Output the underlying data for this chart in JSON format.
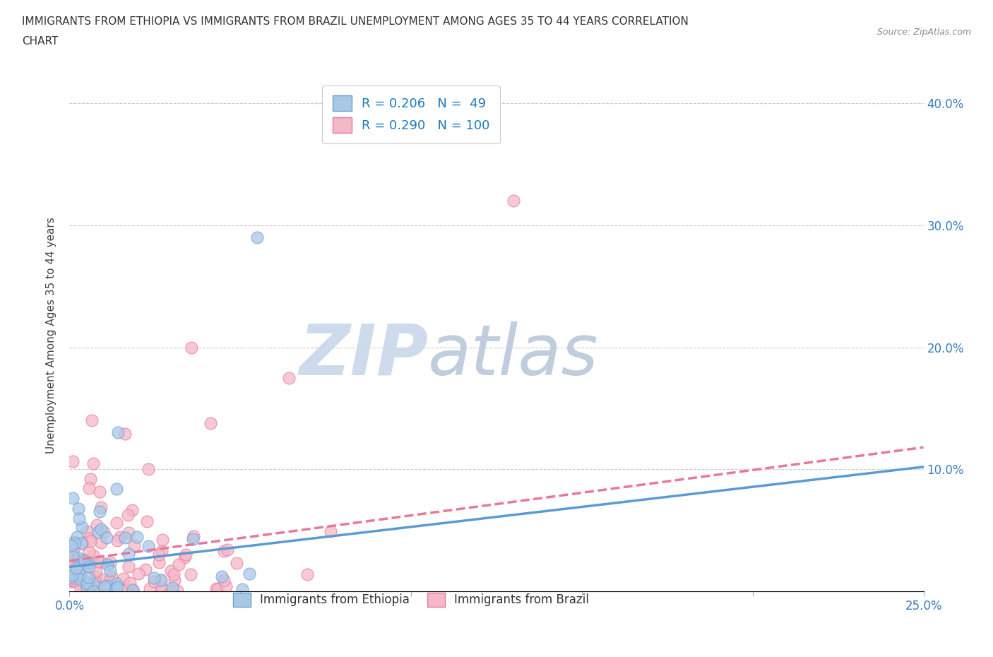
{
  "title_line1": "IMMIGRANTS FROM ETHIOPIA VS IMMIGRANTS FROM BRAZIL UNEMPLOYMENT AMONG AGES 35 TO 44 YEARS CORRELATION",
  "title_line2": "CHART",
  "source": "Source: ZipAtlas.com",
  "ylabel": "Unemployment Among Ages 35 to 44 years",
  "xlim": [
    0.0,
    0.25
  ],
  "ylim": [
    0.0,
    0.42
  ],
  "x_ticks": [
    0.0,
    0.05,
    0.1,
    0.15,
    0.2,
    0.25
  ],
  "x_tick_labels": [
    "0.0%",
    "",
    "",
    "",
    "",
    "25.0%"
  ],
  "y_ticks": [
    0.0,
    0.1,
    0.2,
    0.3,
    0.4
  ],
  "y_tick_labels": [
    "",
    "10.0%",
    "20.0%",
    "30.0%",
    "40.0%"
  ],
  "ethiopia_color": "#a8c8e8",
  "ethiopia_edge": "#6aa0d0",
  "brazil_color": "#f5b8c8",
  "brazil_edge": "#e87898",
  "trend_ethiopia_color": "#5b9bd5",
  "trend_brazil_color": "#e87898",
  "ethiopia_R": 0.206,
  "ethiopia_N": 49,
  "brazil_R": 0.29,
  "brazil_N": 100,
  "watermark_zip": "ZIP",
  "watermark_atlas": "atlas",
  "watermark_color_zip": "#c8d8ea",
  "watermark_color_atlas": "#b8c8da",
  "bottom_legend_labels": [
    "Immigrants from Ethiopia",
    "Immigrants from Brazil"
  ]
}
